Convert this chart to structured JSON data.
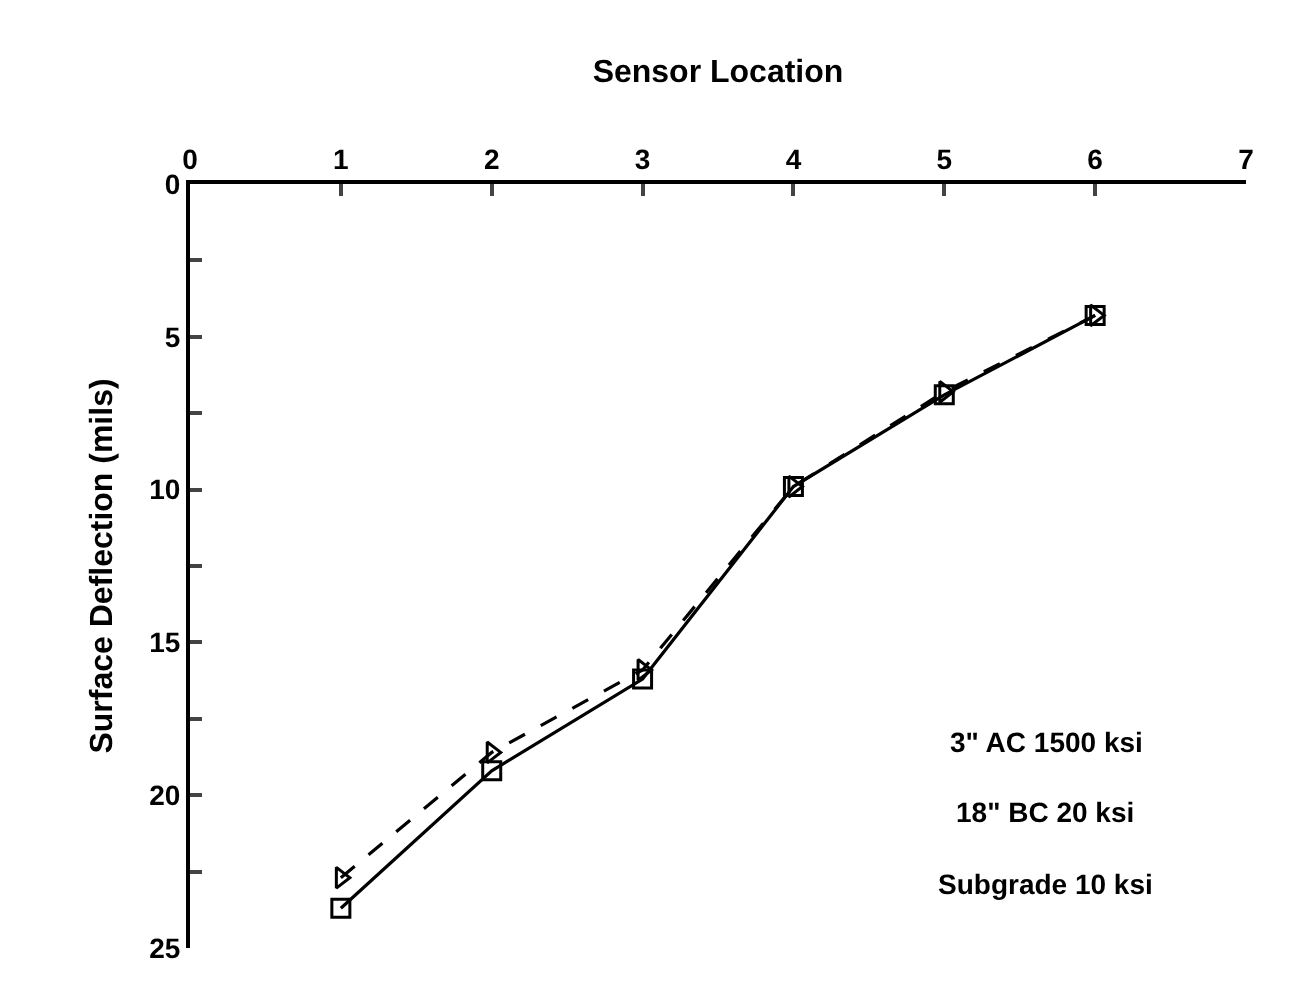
{
  "chart_data": {
    "type": "line",
    "xlabel": "Sensor Location",
    "ylabel": "Surface Deflection (mils)",
    "x": [
      1,
      2,
      3,
      4,
      5,
      6
    ],
    "series": [
      {
        "color": "#000000",
        "marker": "square",
        "line_style": "solid",
        "values": [
          23.7,
          19.2,
          16.2,
          9.9,
          6.9,
          4.3
        ]
      },
      {
        "color": "#000000",
        "marker": "triangle",
        "line_style": "dashed",
        "values": [
          22.7,
          18.6,
          15.9,
          9.9,
          6.8,
          4.3
        ]
      }
    ],
    "xlim": [
      0,
      7
    ],
    "xticks": [
      0,
      1,
      2,
      3,
      4,
      5,
      6,
      7
    ],
    "ylim": [
      25,
      0
    ],
    "yticks": [
      0,
      {
        "value": 2.5,
        "label": null
      },
      5,
      {
        "value": 7.5,
        "label": null
      },
      10,
      {
        "value": 12.5,
        "label": null
      },
      15,
      {
        "value": 17.5,
        "label": null
      },
      20,
      {
        "value": 22.5,
        "label": null
      },
      25
    ],
    "annotations": [
      "3\" AC 1500 ksi",
      "18\" BC 20 ksi",
      "Subgrade 10 ksi"
    ]
  }
}
